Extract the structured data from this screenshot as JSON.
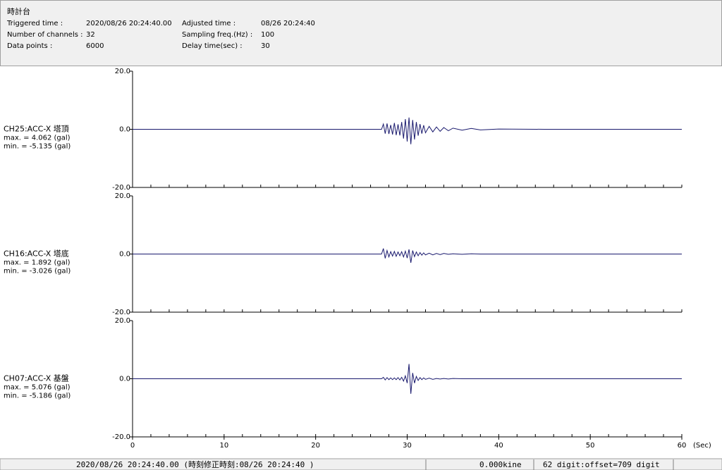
{
  "header": {
    "title": "時計台",
    "left_fields": [
      {
        "label": "Triggered time :",
        "value": "2020/08/26 20:24:40.00"
      },
      {
        "label": "Number of channels :",
        "value": 32
      },
      {
        "label": "Data points :",
        "value": 6000
      }
    ],
    "right_fields": [
      {
        "label": "Adjusted time :",
        "value": "08/26 20:24:40"
      },
      {
        "label": "Sampling freq.(Hz) :",
        "value": 100
      },
      {
        "label": "Delay time(sec) :",
        "value": 30
      }
    ]
  },
  "chart_data": [
    {
      "type": "line",
      "annotations": [
        "max. = 4.062 (gal)",
        "min. = -5.135 (gal)"
      ],
      "x": [
        0,
        27.2,
        27.4,
        27.6,
        27.8,
        28.0,
        28.2,
        28.4,
        28.6,
        28.8,
        29.0,
        29.2,
        29.4,
        29.6,
        29.8,
        30.0,
        30.2,
        30.4,
        30.6,
        30.8,
        31.0,
        31.2,
        31.4,
        31.6,
        31.8,
        32.0,
        32.4,
        32.8,
        33.2,
        33.6,
        34.0,
        34.5,
        35,
        36,
        37,
        38,
        40,
        45,
        60
      ],
      "series": [
        {
          "name": "CH25:ACC-X 塔頂",
          "color": "#1a1a6e",
          "values": [
            0,
            0,
            1.8,
            -1.5,
            2,
            -1.6,
            1.5,
            -1.8,
            2.2,
            -2,
            1.7,
            -2.1,
            2.5,
            -3.2,
            3.5,
            -4.2,
            4.062,
            -5.135,
            3.2,
            -3.5,
            2.5,
            -2.2,
            1.8,
            -1.5,
            1.4,
            -1.2,
            1,
            -0.9,
            0.8,
            -0.7,
            0.6,
            -0.5,
            0.4,
            -0.3,
            0.3,
            -0.2,
            0.1,
            0,
            0
          ]
        }
      ],
      "xlim": [
        0,
        60
      ],
      "ylim": [
        -20,
        20
      ],
      "yticks": [
        {
          "value": 20,
          "label": "20.0"
        },
        {
          "value": 0,
          "label": "0.0"
        },
        {
          "value": -20,
          "label": "-20.0"
        }
      ],
      "xticks_minor": [
        0,
        2,
        4,
        6,
        8,
        10,
        12,
        14,
        16,
        18,
        20,
        22,
        24,
        26,
        28,
        30,
        32,
        34,
        36,
        38,
        40,
        42,
        44,
        46,
        48,
        50,
        52,
        54,
        56,
        58,
        60
      ]
    },
    {
      "type": "line",
      "annotations": [
        "max. = 1.892 (gal)",
        "min. = -3.026 (gal)"
      ],
      "x": [
        0,
        27.2,
        27.4,
        27.6,
        27.8,
        28.0,
        28.2,
        28.4,
        28.6,
        28.8,
        29.0,
        29.2,
        29.4,
        29.6,
        29.8,
        30.0,
        30.2,
        30.4,
        30.6,
        30.8,
        31.0,
        31.2,
        31.4,
        31.6,
        31.8,
        32.0,
        32.4,
        32.8,
        33.2,
        33.6,
        34.0,
        34.5,
        35,
        36,
        37,
        38,
        40,
        45,
        60
      ],
      "series": [
        {
          "name": "CH16:ACC-X 塔底",
          "color": "#1a1a6e",
          "values": [
            0,
            0,
            1.892,
            -1.5,
            1.2,
            -1,
            0.8,
            -0.7,
            0.9,
            -0.8,
            0.7,
            -0.6,
            0.8,
            -1,
            1,
            -1.4,
            1.6,
            -3.026,
            1.2,
            -0.9,
            0.7,
            -0.6,
            0.5,
            -0.4,
            0.4,
            -0.3,
            0.3,
            -0.3,
            0.2,
            -0.2,
            0.2,
            -0.1,
            0.1,
            -0.1,
            0.1,
            0,
            0,
            0,
            0
          ]
        }
      ],
      "xlim": [
        0,
        60
      ],
      "ylim": [
        -20,
        20
      ],
      "yticks": [
        {
          "value": 20,
          "label": "20.0"
        },
        {
          "value": 0,
          "label": "0.0"
        },
        {
          "value": -20,
          "label": "-20.0"
        }
      ],
      "xticks_minor": [
        0,
        2,
        4,
        6,
        8,
        10,
        12,
        14,
        16,
        18,
        20,
        22,
        24,
        26,
        28,
        30,
        32,
        34,
        36,
        38,
        40,
        42,
        44,
        46,
        48,
        50,
        52,
        54,
        56,
        58,
        60
      ]
    },
    {
      "type": "line",
      "annotations": [
        "max. = 5.076 (gal)",
        "min. = -5.186 (gal)"
      ],
      "x": [
        0,
        27.2,
        27.4,
        27.6,
        27.8,
        28.0,
        28.2,
        28.4,
        28.6,
        28.8,
        29.0,
        29.2,
        29.4,
        29.6,
        29.8,
        30.0,
        30.2,
        30.4,
        30.6,
        30.8,
        31.0,
        31.2,
        31.4,
        31.6,
        31.8,
        32.0,
        32.4,
        32.8,
        33.2,
        33.6,
        34.0,
        34.5,
        35,
        36,
        37,
        38,
        40,
        45,
        60
      ],
      "series": [
        {
          "name": "CH07:ACC-X 基盤",
          "color": "#1a1a6e",
          "values": [
            0,
            0,
            0.5,
            -0.4,
            0.4,
            -0.3,
            0.3,
            -0.3,
            0.3,
            -0.3,
            0.4,
            -0.4,
            0.5,
            -0.8,
            1,
            -1.5,
            5.076,
            -5.186,
            2,
            -1.5,
            0.8,
            -0.6,
            0.4,
            -0.3,
            0.3,
            -0.2,
            0.2,
            -0.2,
            0.1,
            -0.1,
            0.1,
            -0.1,
            0.1,
            0,
            0,
            0,
            0,
            0,
            0
          ]
        }
      ],
      "xlim": [
        0,
        60
      ],
      "ylim": [
        -20,
        20
      ],
      "yticks": [
        {
          "value": 20,
          "label": "20.0"
        },
        {
          "value": 0,
          "label": "0.0"
        },
        {
          "value": -20,
          "label": "-20.0"
        }
      ],
      "xticks": [
        0,
        10,
        20,
        30,
        40,
        50,
        60
      ],
      "xlabel": "(Sec)",
      "xticks_minor": [
        0,
        2,
        4,
        6,
        8,
        10,
        12,
        14,
        16,
        18,
        20,
        22,
        24,
        26,
        28,
        30,
        32,
        34,
        36,
        38,
        40,
        42,
        44,
        46,
        48,
        50,
        52,
        54,
        56,
        58,
        60
      ]
    }
  ],
  "status_bar": [
    "2020/08/26 20:24:40.00  (時刻修正時刻:08/26 20:24:40  )",
    "0.000kine",
    "62 digit:offset=709 digit"
  ]
}
